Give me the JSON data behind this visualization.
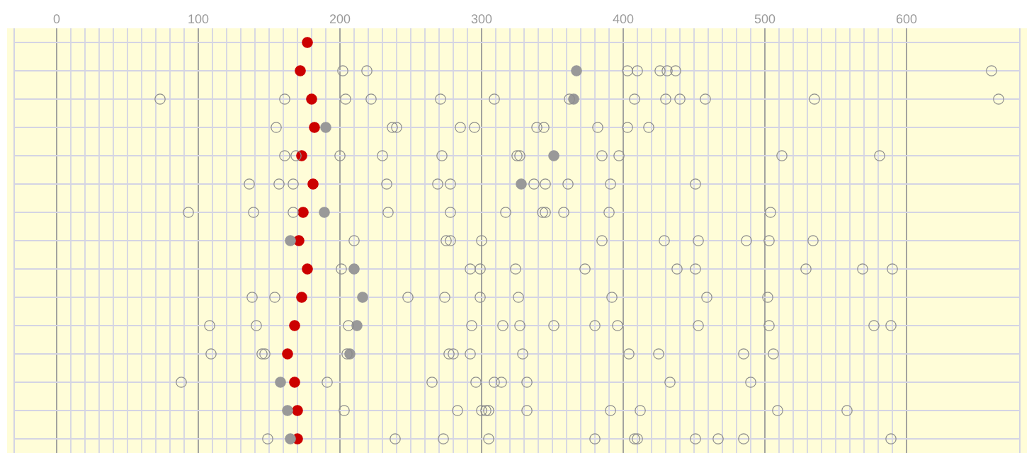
{
  "chart_data": {
    "type": "scatter",
    "orientation": "horizontal",
    "marker": "circle",
    "grid": true,
    "tick_labels": "x",
    "categories": [
      null,
      null,
      null,
      null,
      null,
      null,
      null,
      null,
      null,
      null,
      null,
      null,
      null,
      null,
      null
    ],
    "xlim": [
      -30,
      680
    ],
    "xticks": [
      0,
      100,
      200,
      300,
      400,
      500,
      600
    ],
    "series": [
      {
        "color": "#cc0000",
        "values": [
          177,
          172,
          180,
          182,
          173,
          181,
          174,
          171,
          177,
          173,
          168,
          163,
          168,
          170,
          170
        ]
      },
      {
        "color": "#999999",
        "values": [
          null,
          367,
          365,
          190,
          351,
          328,
          189,
          165,
          210,
          216,
          212,
          207,
          158,
          163,
          165
        ]
      },
      {
        "color": "#8c8c8c",
        "values": [
          null,
          202,
          73,
          155,
          161,
          136,
          93,
          210,
          201,
          138,
          108,
          109,
          88,
          203,
          149
        ]
      },
      {
        "color": "#8c8c8c",
        "values": [
          null,
          219,
          161,
          237,
          169,
          157,
          139,
          275,
          292,
          154,
          141,
          145,
          191,
          283,
          239
        ]
      },
      {
        "color": "#8c8c8c",
        "values": [
          null,
          403,
          204,
          240,
          200,
          167,
          167,
          278,
          299,
          248,
          206,
          147,
          265,
          300,
          273
        ]
      },
      {
        "color": "#8c8c8c",
        "values": [
          null,
          410,
          222,
          285,
          230,
          233,
          234,
          300,
          324,
          274,
          293,
          205,
          296,
          303,
          305
        ]
      },
      {
        "color": "#8c8c8c",
        "values": [
          null,
          426,
          271,
          295,
          272,
          269,
          278,
          385,
          373,
          299,
          315,
          277,
          309,
          305,
          380
        ]
      },
      {
        "color": "#8c8c8c",
        "values": [
          null,
          431,
          309,
          339,
          325,
          278,
          317,
          429,
          438,
          326,
          327,
          280,
          314,
          332,
          408
        ]
      },
      {
        "color": "#8c8c8c",
        "values": [
          null,
          437,
          362,
          344,
          327,
          337,
          343,
          453,
          451,
          392,
          351,
          292,
          332,
          391,
          410
        ]
      },
      {
        "color": "#8c8c8c",
        "values": [
          null,
          660,
          408,
          382,
          385,
          345,
          345,
          487,
          529,
          459,
          380,
          329,
          433,
          412,
          451
        ]
      },
      {
        "color": "#8c8c8c",
        "values": [
          null,
          null,
          430,
          403,
          397,
          361,
          358,
          503,
          569,
          502,
          396,
          404,
          490,
          509,
          467
        ]
      },
      {
        "color": "#8c8c8c",
        "values": [
          null,
          null,
          440,
          418,
          512,
          391,
          390,
          534,
          590,
          null,
          453,
          425,
          null,
          558,
          485
        ]
      },
      {
        "color": "#8c8c8c",
        "values": [
          null,
          null,
          458,
          null,
          581,
          451,
          504,
          null,
          null,
          null,
          503,
          485,
          null,
          null,
          589
        ]
      },
      {
        "color": "#8c8c8c",
        "values": [
          null,
          null,
          535,
          null,
          null,
          null,
          null,
          null,
          null,
          null,
          577,
          506,
          null,
          null,
          null
        ]
      },
      {
        "color": "#8c8c8c",
        "values": [
          null,
          null,
          665,
          null,
          null,
          null,
          null,
          null,
          null,
          null,
          589,
          null,
          null,
          null,
          null
        ]
      }
    ]
  }
}
